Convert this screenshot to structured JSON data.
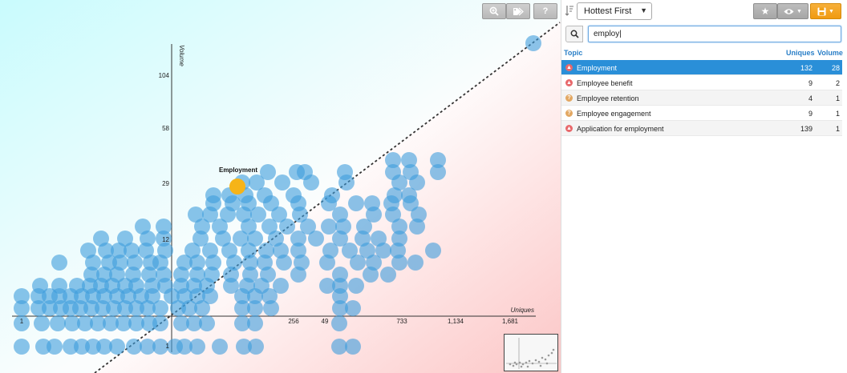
{
  "toolbar": {
    "buttons": [
      {
        "name": "zoom-in-button",
        "icon": "magnifier-plus-icon"
      },
      {
        "name": "tag-button",
        "icon": "tags-icon"
      },
      {
        "name": "help-button",
        "label": "?"
      }
    ],
    "sort_label": "Hottest First",
    "right_buttons": [
      {
        "name": "favorite-button",
        "icon": "star-icon"
      },
      {
        "name": "view-menu-button",
        "icon": "eye-icon"
      },
      {
        "name": "save-menu-button",
        "icon": "floppy-icon"
      }
    ]
  },
  "search": {
    "value": "employ|"
  },
  "table": {
    "headers": {
      "topic": "Topic",
      "uniques": "Uniques",
      "volume": "Volume"
    },
    "rows": [
      {
        "topic": "Employment",
        "uniques": "132",
        "volume": "28",
        "status": "hot",
        "selected": true
      },
      {
        "topic": "Employee benefit",
        "uniques": "9",
        "volume": "2",
        "status": "hot",
        "selected": false
      },
      {
        "topic": "Employee retention",
        "uniques": "4",
        "volume": "1",
        "status": "neutral",
        "selected": false
      },
      {
        "topic": "Employee engagement",
        "uniques": "9",
        "volume": "1",
        "status": "neutral",
        "selected": false
      },
      {
        "topic": "Application for employment",
        "uniques": "139",
        "volume": "1",
        "status": "hot",
        "selected": false
      }
    ]
  },
  "chart_data": {
    "type": "scatter",
    "xlabel": "Uniques",
    "ylabel": "Volume",
    "x_ticks": [
      "1",
      "49",
      "256",
      "733",
      "1,134",
      "1,681"
    ],
    "y_ticks": [
      "1",
      "12",
      "29",
      "58",
      "104"
    ],
    "highlight": {
      "label": "Employment",
      "uniques": 132,
      "volume": 28
    }
  },
  "colors": {
    "bubble": "#3d9ddc",
    "highlight": "#f6b418",
    "selected_row": "#2a8fd8",
    "hot": "#e8696c",
    "neutral": "#e3a863",
    "save": "#f5a623"
  }
}
